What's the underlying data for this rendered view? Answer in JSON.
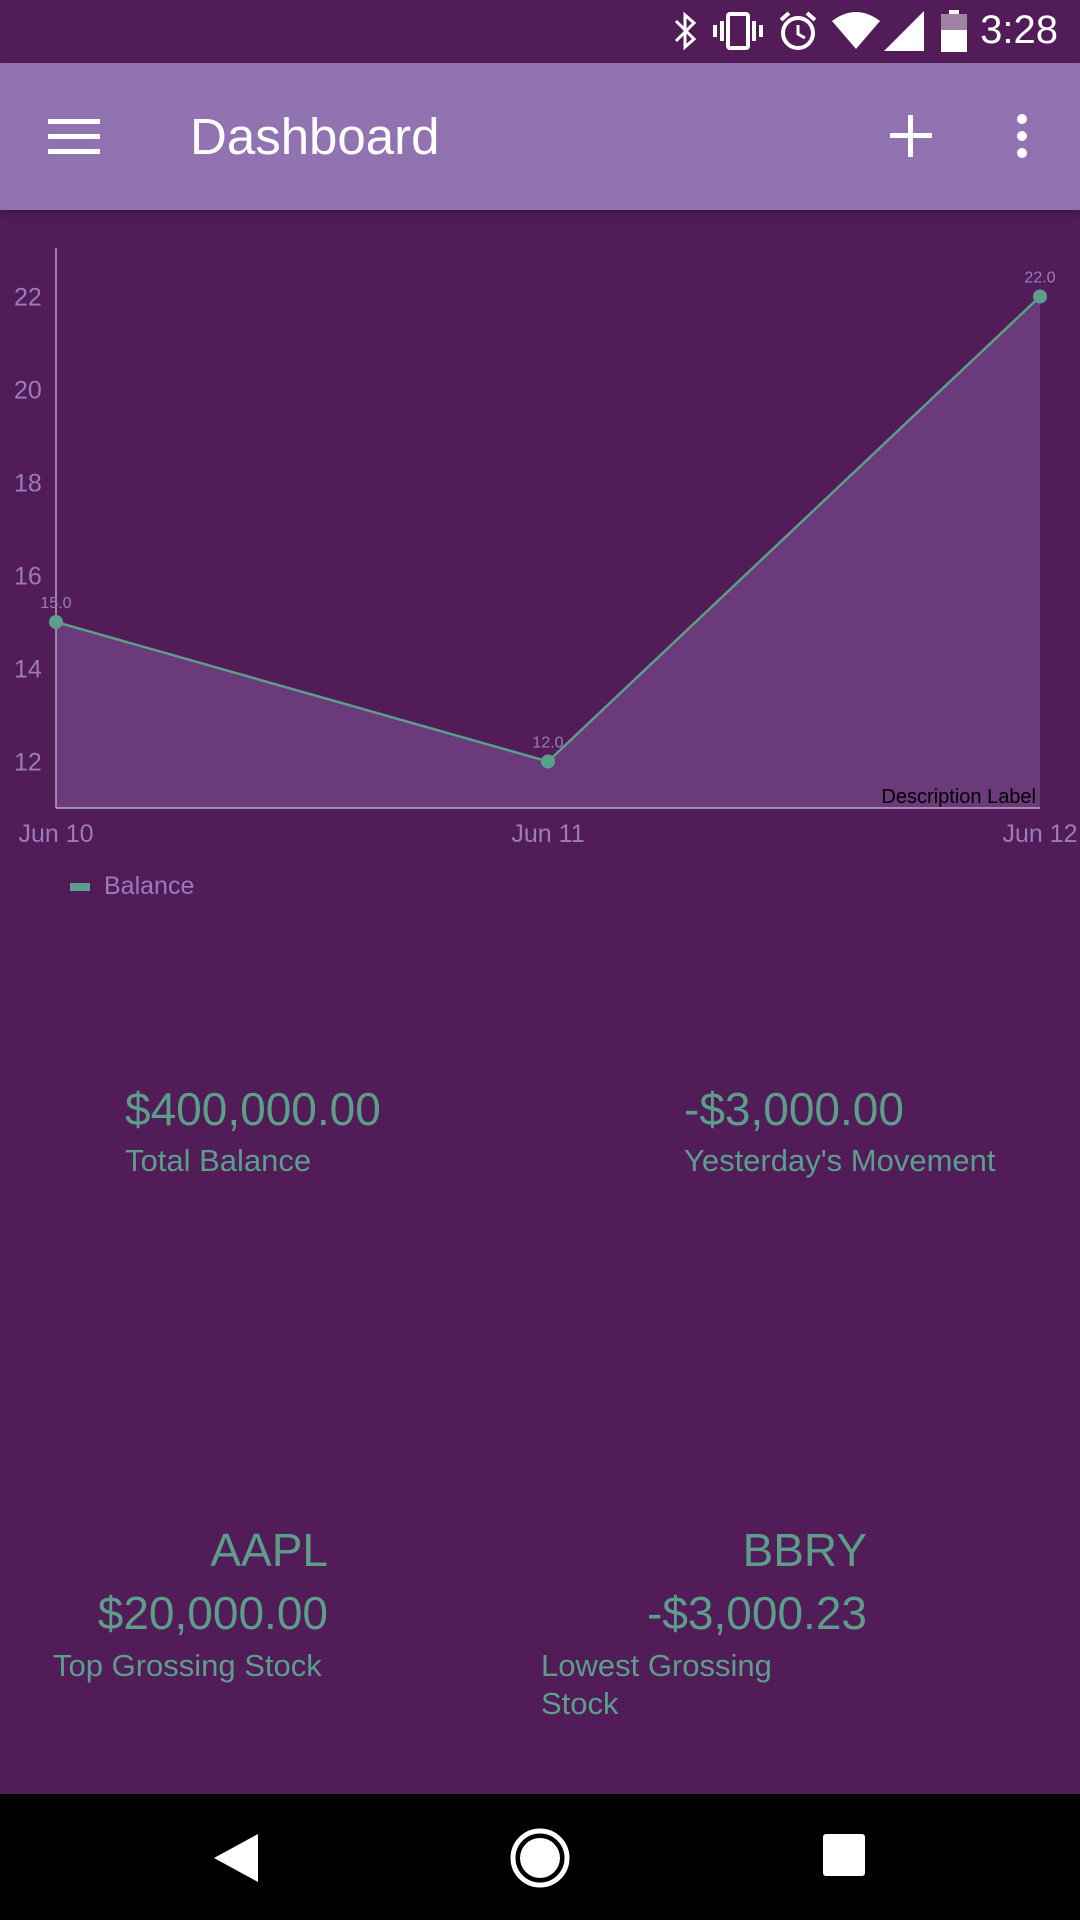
{
  "status_bar": {
    "time": "3:28",
    "icons": [
      "bluetooth-icon",
      "vibrate-icon",
      "alarm-icon",
      "wifi-icon",
      "cell-signal-icon",
      "battery-icon"
    ]
  },
  "app_bar": {
    "title": "Dashboard",
    "icons": [
      "menu-icon",
      "add-icon",
      "overflow-icon"
    ]
  },
  "colors": {
    "background": "#521c59",
    "app_bar": "#9273b2",
    "accent": "#5b9e8a",
    "axis_text": "#9a7cba",
    "fill": "#6b3a7a"
  },
  "chart_data": {
    "type": "area",
    "x": [
      "Jun 10",
      "Jun 11",
      "Jun 12"
    ],
    "series": [
      {
        "name": "Balance",
        "values": [
          15.0,
          12.0,
          22.0
        ],
        "value_labels": [
          "15.0",
          "12.0",
          "22.0"
        ]
      }
    ],
    "y_ticks": [
      12,
      14,
      16,
      18,
      20,
      22
    ],
    "ylim": [
      11,
      23
    ],
    "description": "Description Label",
    "legend_position": "bottom-left",
    "grid": false
  },
  "legend": {
    "label": "Balance"
  },
  "stats": {
    "total_balance": {
      "value": "$400,000.00",
      "label": "Total Balance"
    },
    "movement": {
      "value": "-$3,000.00",
      "label": "Yesterday's Movement"
    },
    "top_stock": {
      "ticker": "AAPL",
      "value": "$20,000.00",
      "label": "Top Grossing Stock"
    },
    "lowest_stock": {
      "ticker": "BBRY",
      "value": "-$3,000.23",
      "label_line1": "Lowest Grossing",
      "label_line2": "Stock"
    }
  },
  "nav_bar": {
    "icons": [
      "back-icon",
      "home-icon",
      "recents-icon"
    ]
  }
}
